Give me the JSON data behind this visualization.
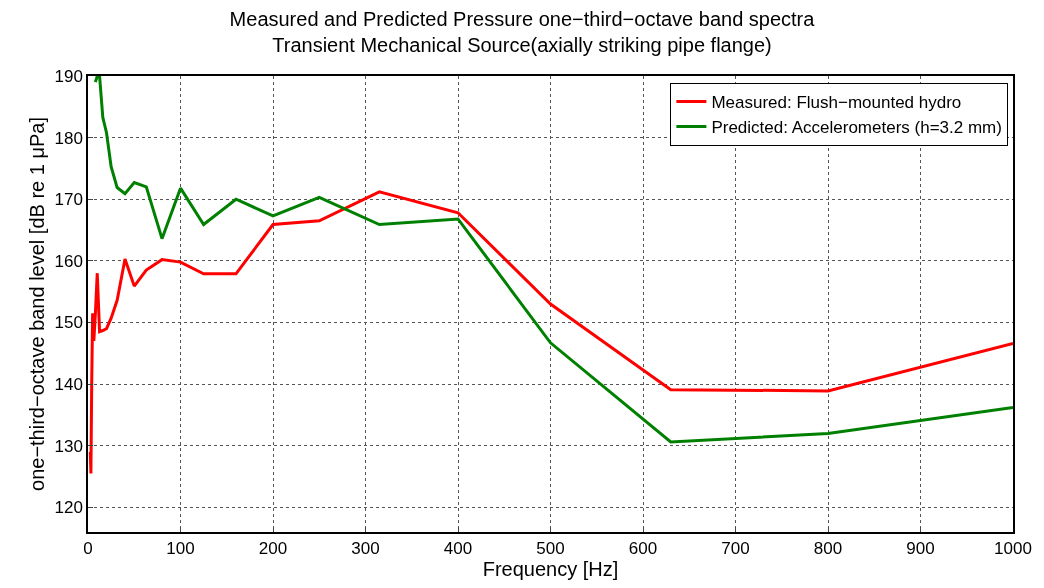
{
  "chart_data": {
    "type": "line",
    "title": "Measured and Predicted Pressure one−third−octave band spectra",
    "subtitle": "Transient Mechanical Source(axially striking pipe flange)",
    "xlabel": "Frequency [Hz]",
    "ylabel": "one−third−octave band level [dB re 1 μPa]",
    "x": [
      2.5,
      3.15,
      4,
      5,
      6.3,
      8,
      10,
      12.5,
      16,
      20,
      25,
      31.5,
      40,
      50,
      63,
      80,
      100,
      125,
      160,
      200,
      250,
      315,
      400,
      500,
      630,
      800,
      1000
    ],
    "series": [
      {
        "name": "Measured: Flush−mounted hydro",
        "color": "#ff0000",
        "values": [
          129,
          125.5,
          140,
          151.5,
          147,
          151.5,
          158,
          148.5,
          148.7,
          149,
          150.7,
          153.6,
          160.3,
          155.9,
          158.5,
          160.2,
          159.8,
          157.9,
          157.9,
          165.9,
          166.5,
          171.2,
          167.8,
          153,
          139.1,
          138.9,
          146.6
        ]
      },
      {
        "name": "Predicted: Accelerometers (h=3.2 mm)",
        "color": "#008000",
        "values": [
          null,
          null,
          null,
          null,
          null,
          189,
          190,
          190,
          183.3,
          180.8,
          175.3,
          171.9,
          170.9,
          172.7,
          172,
          163.6,
          171.8,
          165.9,
          170,
          167.3,
          170.3,
          165.9,
          166.8,
          146.7,
          130.6,
          132,
          136.2
        ]
      }
    ],
    "xlim": [
      0,
      1000
    ],
    "xticks": [
      0,
      100,
      200,
      300,
      400,
      500,
      600,
      700,
      800,
      900,
      1000
    ],
    "ylim": [
      116,
      190
    ],
    "yticks": [
      120,
      130,
      140,
      150,
      160,
      170,
      180,
      190
    ],
    "grid": true,
    "legend": "top right",
    "line_style": "solid",
    "marker": "none"
  }
}
